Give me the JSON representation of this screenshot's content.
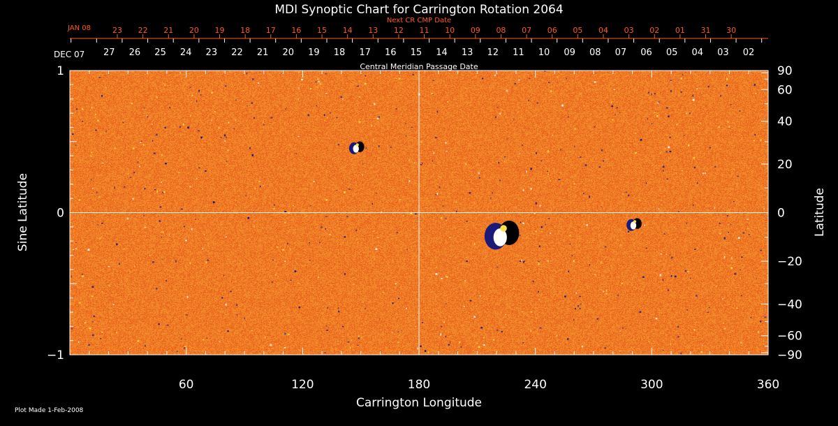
{
  "chart_data": {
    "type": "heatmap",
    "title": "MDI Synoptic Chart for Carrington Rotation 2064",
    "xlabel": "Carrington Longitude",
    "ylabel_left": "Sine Latitude",
    "ylabel_right": "Latitude",
    "xlim": [
      0,
      360
    ],
    "ylim": [
      -1,
      1
    ],
    "x_ticks": [
      60,
      120,
      180,
      240,
      300,
      360
    ],
    "y_ticks_left": [
      {
        "value": 1,
        "label": "1"
      },
      {
        "value": 0,
        "label": "0"
      },
      {
        "value": -1,
        "label": "−1"
      }
    ],
    "y_ticks_right": [
      {
        "deg": 90,
        "label": "90"
      },
      {
        "deg": 60,
        "label": "60"
      },
      {
        "deg": 40,
        "label": "40"
      },
      {
        "deg": 20,
        "label": "20"
      },
      {
        "deg": 0,
        "label": "0"
      },
      {
        "deg": -20,
        "label": "−20"
      },
      {
        "deg": -40,
        "label": "−40"
      },
      {
        "deg": -60,
        "label": "−60"
      },
      {
        "deg": -90,
        "label": "−90"
      }
    ],
    "top_axis_cmp": {
      "label": "Central Meridian Passage Date",
      "start_label": "DEC 07",
      "days": [
        "27",
        "26",
        "25",
        "24",
        "23",
        "22",
        "21",
        "20",
        "19",
        "18",
        "17",
        "16",
        "15",
        "14",
        "13",
        "12",
        "11",
        "10",
        "09",
        "08",
        "07",
        "06",
        "05",
        "04",
        "03",
        "02"
      ]
    },
    "top_axis_next_cmp": {
      "label": "Next CR CMP Date",
      "start_label": "JAN 08",
      "days": [
        "23",
        "22",
        "21",
        "20",
        "19",
        "18",
        "17",
        "16",
        "15",
        "14",
        "13",
        "12",
        "11",
        "10",
        "09",
        "08",
        "07",
        "06",
        "05",
        "04",
        "03",
        "02",
        "01",
        "31",
        "30"
      ]
    },
    "gridlines": {
      "longitude": 180,
      "sine_latitude": 0
    },
    "active_regions": [
      {
        "longitude": 148,
        "sine_latitude": 0.46,
        "polarity": "mixed"
      },
      {
        "longitude": 223,
        "sine_latitude": -0.15,
        "polarity": "mixed"
      },
      {
        "longitude": 291,
        "sine_latitude": -0.08,
        "polarity": "mixed"
      }
    ],
    "colors": {
      "background_field": "#e8561c",
      "positive_field": "#ffffff",
      "negative_field": "#1a1a78",
      "axis": "#ffffff",
      "next_cmp_axis": "#ff5a1a"
    }
  },
  "footer": {
    "plot_made": "Plot Made  1-Feb-2008"
  }
}
